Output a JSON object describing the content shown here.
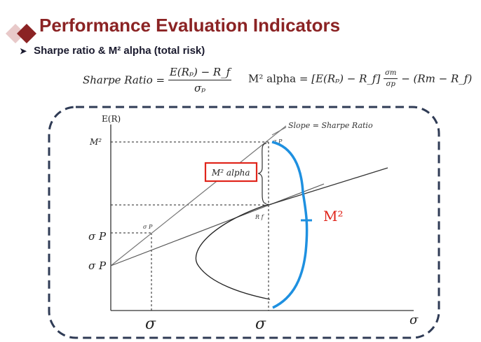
{
  "header": {
    "title": "Performance Evaluation Indicators",
    "icon": "double-diamond-icon",
    "colors": {
      "title": "#8b2324",
      "diamond_dark": "#8b2324",
      "diamond_light": "#e8c9c9"
    }
  },
  "bullet": {
    "text": "Sharpe ratio & M² alpha (total risk)"
  },
  "formulas": {
    "sharpe_label": "Sharpe Ratio =",
    "sharpe_numerator": "E(Rₚ) − R_f",
    "sharpe_denominator": "σₚ",
    "m2_label": "M² alpha =",
    "m2_bracket": "[E(Rₚ) − R_f]",
    "m2_frac_num": "σm",
    "m2_frac_den": "σp",
    "m2_tail": "− (Rm − R_f)"
  },
  "diagram": {
    "y_axis_label": "E(R)",
    "x_axis_label": "σ",
    "y_tick_m2": "M²",
    "y_tick_sigma_p_upper": "σ P",
    "y_tick_sigma_p_lower": "σ P",
    "x_tick_left": "σ",
    "x_tick_right": "σ",
    "slope_label": "Slope = Sharpe Ratio",
    "point_sigma_p_small": "σ P",
    "point_sigma_p_top": "σ P",
    "point_r": "R f",
    "m2_alpha_box": "M² alpha",
    "m2_brace_label": "M²",
    "colors": {
      "border": "#2f3b55",
      "highlight_box": "#e0251b",
      "blue_curve": "#1e90e0",
      "m2_label": "#e0251b",
      "lines": "#555555"
    }
  }
}
